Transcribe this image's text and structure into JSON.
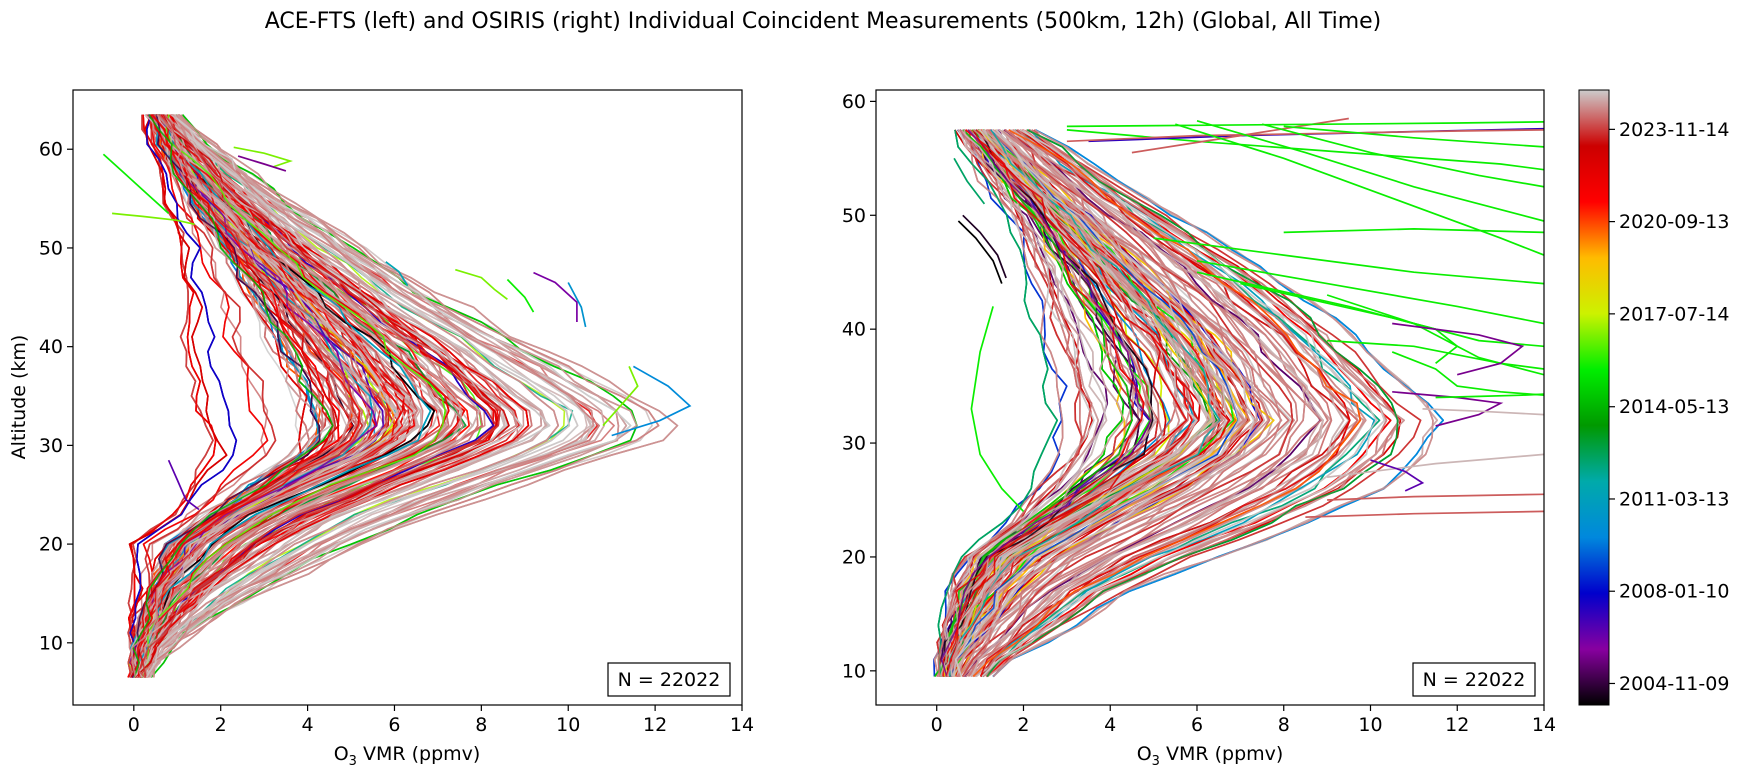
{
  "suptitle": "ACE-FTS (left) and OSIRIS (right) Individual Coincident Measurements (500km, 12h) (Global, All Time)",
  "chart_data": [
    {
      "type": "line",
      "instrument": "ACE-FTS",
      "title": "",
      "xlabel_main": "O",
      "xlabel_sub": "3",
      "xlabel_rest": " VMR (ppmv)",
      "ylabel": "Altitude (km)",
      "xlim": [
        -1.4,
        14
      ],
      "ylim": [
        3.7,
        66
      ],
      "x_ticks": [
        0,
        2,
        4,
        6,
        8,
        10,
        12,
        14
      ],
      "y_ticks": [
        10,
        20,
        30,
        40,
        50,
        60
      ],
      "annotation": "N = 22022",
      "color_encoding": "measurement date (see colorbar)",
      "profile_altitude_range_km": [
        6.5,
        64.5
      ],
      "envelope": [
        {
          "alt": 7,
          "min": 0.0,
          "median": 0.1,
          "max": 0.4
        },
        {
          "alt": 10,
          "min": -0.1,
          "median": 0.2,
          "max": 1.0
        },
        {
          "alt": 15,
          "min": 0.0,
          "median": 0.7,
          "max": 3.0
        },
        {
          "alt": 20,
          "min": -0.1,
          "median": 1.6,
          "max": 5.5
        },
        {
          "alt": 23,
          "min": 0.8,
          "median": 2.6,
          "max": 7.2
        },
        {
          "alt": 26,
          "min": 1.3,
          "median": 4.0,
          "max": 9.2
        },
        {
          "alt": 29,
          "min": 1.6,
          "median": 5.6,
          "max": 11.3
        },
        {
          "alt": 31,
          "min": 1.5,
          "median": 6.4,
          "max": 12.6
        },
        {
          "alt": 33,
          "min": 1.3,
          "median": 6.6,
          "max": 12.6
        },
        {
          "alt": 36,
          "min": 1.1,
          "median": 6.2,
          "max": 11.3
        },
        {
          "alt": 40,
          "min": 1.0,
          "median": 5.4,
          "max": 9.5
        },
        {
          "alt": 45,
          "min": 1.1,
          "median": 4.2,
          "max": 7.2
        },
        {
          "alt": 50,
          "min": 1.0,
          "median": 3.0,
          "max": 5.4
        },
        {
          "alt": 55,
          "min": 0.7,
          "median": 1.9,
          "max": 3.6
        },
        {
          "alt": 60,
          "min": 0.4,
          "median": 1.0,
          "max": 2.0
        },
        {
          "alt": 64,
          "min": 0.2,
          "median": 0.5,
          "max": 1.0
        }
      ],
      "outliers": [
        {
          "x": [
            -0.7,
            -0.2,
            0.3,
            0.8
          ],
          "y": [
            59.5,
            57.5,
            55.5,
            53.5
          ],
          "date_frac": 0.55
        },
        {
          "x": [
            -0.5,
            0.2,
            1.0,
            1.4
          ],
          "y": [
            53.5,
            53.2,
            52.8,
            52.4
          ],
          "date_frac": 0.6
        },
        {
          "x": [
            2.3,
            3.0,
            3.6,
            3.2
          ],
          "y": [
            60.2,
            59.6,
            58.8,
            58.2
          ],
          "date_frac": 0.6
        },
        {
          "x": [
            2.4,
            3.0,
            3.5
          ],
          "y": [
            59.3,
            58.5,
            57.8
          ],
          "date_frac": 0.08
        },
        {
          "x": [
            9.2,
            9.7,
            10.2,
            10.2
          ],
          "y": [
            47.5,
            46.5,
            44.5,
            42.5
          ],
          "date_frac": 0.1
        },
        {
          "x": [
            7.4,
            8.0,
            8.3,
            8.6
          ],
          "y": [
            47.8,
            47.0,
            45.8,
            44.8
          ],
          "date_frac": 0.6
        },
        {
          "x": [
            8.6,
            9.0,
            9.2
          ],
          "y": [
            46.8,
            45.0,
            43.5
          ],
          "date_frac": 0.55
        },
        {
          "x": [
            5.8,
            6.1,
            6.3
          ],
          "y": [
            48.6,
            47.6,
            46.2
          ],
          "date_frac": 0.35
        },
        {
          "x": [
            10.0,
            10.3,
            10.4
          ],
          "y": [
            46.5,
            44.0,
            42.0
          ],
          "date_frac": 0.3
        },
        {
          "x": [
            11.4,
            11.6,
            11.2,
            10.8
          ],
          "y": [
            38.0,
            36.0,
            34.0,
            32.0
          ],
          "date_frac": 0.6
        },
        {
          "x": [
            11.5,
            12.3,
            12.8,
            12.1,
            11.0
          ],
          "y": [
            38.0,
            36.0,
            34.0,
            32.5,
            31.0
          ],
          "date_frac": 0.28
        },
        {
          "x": [
            0.8,
            1.0,
            1.2,
            1.5
          ],
          "y": [
            28.5,
            26.5,
            24.5,
            23.5
          ],
          "date_frac": 0.12
        }
      ]
    },
    {
      "type": "line",
      "instrument": "OSIRIS",
      "title": "",
      "xlabel_main": "O",
      "xlabel_sub": "3",
      "xlabel_rest": " VMR (ppmv)",
      "ylabel": "",
      "xlim": [
        -1.4,
        14
      ],
      "ylim": [
        7,
        61
      ],
      "x_ticks": [
        0,
        2,
        4,
        6,
        8,
        10,
        12,
        14
      ],
      "y_ticks": [
        10,
        20,
        30,
        40,
        50,
        60
      ],
      "annotation": "N = 22022",
      "color_encoding": "measurement date (see colorbar)",
      "profile_altitude_range_km": [
        9.5,
        58.5
      ],
      "envelope": [
        {
          "alt": 10,
          "min": 0.0,
          "median": 0.2,
          "max": 1.4
        },
        {
          "alt": 13,
          "min": 0.0,
          "median": 0.5,
          "max": 2.8
        },
        {
          "alt": 17,
          "min": 0.0,
          "median": 1.0,
          "max": 4.6
        },
        {
          "alt": 20,
          "min": 0.3,
          "median": 1.6,
          "max": 6.6
        },
        {
          "alt": 23,
          "min": 1.3,
          "median": 2.8,
          "max": 8.8
        },
        {
          "alt": 26,
          "min": 1.7,
          "median": 4.2,
          "max": 10.5
        },
        {
          "alt": 29,
          "min": 1.8,
          "median": 5.6,
          "max": 11.4
        },
        {
          "alt": 32,
          "min": 1.8,
          "median": 6.3,
          "max": 11.8
        },
        {
          "alt": 35,
          "min": 1.7,
          "median": 6.0,
          "max": 11.0
        },
        {
          "alt": 40,
          "min": 1.6,
          "median": 5.2,
          "max": 9.6
        },
        {
          "alt": 45,
          "min": 1.6,
          "median": 4.0,
          "max": 7.8
        },
        {
          "alt": 50,
          "min": 1.3,
          "median": 2.8,
          "max": 5.6
        },
        {
          "alt": 55,
          "min": 0.6,
          "median": 1.6,
          "max": 3.4
        },
        {
          "alt": 58,
          "min": 0.2,
          "median": 0.9,
          "max": 2.2
        }
      ],
      "outliers": [
        {
          "x": [
            3.0,
            6.0,
            9.5,
            13.0,
            14.0
          ],
          "y": [
            57.5,
            56.5,
            55.5,
            54.5,
            54.0
          ],
          "date_frac": 0.55
        },
        {
          "x": [
            3.5,
            7.0,
            10.5,
            14.0
          ],
          "y": [
            56.5,
            57.0,
            57.3,
            57.6
          ],
          "date_frac": 0.15
        },
        {
          "x": [
            4.5,
            7.0,
            9.5
          ],
          "y": [
            55.5,
            57.0,
            58.5
          ],
          "date_frac": 0.95
        },
        {
          "x": [
            3.0,
            6.0,
            9.0,
            12.0,
            14.0
          ],
          "y": [
            56.5,
            57.0,
            57.2,
            57.4,
            57.5
          ],
          "date_frac": 0.95
        },
        {
          "x": [
            3.0,
            6.0,
            9.0,
            12.0,
            14.0
          ],
          "y": [
            57.8,
            57.9,
            58.0,
            58.1,
            58.2
          ],
          "date_frac": 0.55
        },
        {
          "x": [
            5.5,
            8.0,
            10.5,
            13.0,
            14.0
          ],
          "y": [
            58.0,
            55.0,
            51.5,
            48.0,
            46.5
          ],
          "date_frac": 0.55
        },
        {
          "x": [
            6.0,
            8.5,
            11.0,
            14.0
          ],
          "y": [
            58.3,
            55.5,
            52.5,
            49.5
          ],
          "date_frac": 0.55
        },
        {
          "x": [
            7.5,
            10.0,
            12.5,
            14.0
          ],
          "y": [
            58.0,
            55.5,
            53.5,
            52.5
          ],
          "date_frac": 0.55
        },
        {
          "x": [
            8.0,
            11.0,
            14.0
          ],
          "y": [
            57.8,
            56.8,
            56.0
          ],
          "date_frac": 0.55
        },
        {
          "x": [
            5.0,
            8.0,
            11.0,
            14.0
          ],
          "y": [
            48.0,
            46.5,
            45.0,
            44.0
          ],
          "date_frac": 0.55
        },
        {
          "x": [
            8.0,
            11.0,
            14.0
          ],
          "y": [
            48.5,
            48.8,
            48.5
          ],
          "date_frac": 0.55
        },
        {
          "x": [
            6.0,
            9.0,
            12.0,
            14.0
          ],
          "y": [
            46.0,
            44.0,
            42.0,
            40.5
          ],
          "date_frac": 0.55
        },
        {
          "x": [
            7.0,
            10.5,
            12.5,
            14.0
          ],
          "y": [
            44.0,
            41.0,
            39.0,
            38.5
          ],
          "date_frac": 0.55
        },
        {
          "x": [
            6.0,
            9.5,
            11.5,
            12.0,
            11.5
          ],
          "y": [
            45.0,
            42.0,
            40.0,
            38.5,
            37.0
          ],
          "date_frac": 0.55
        },
        {
          "x": [
            9.0,
            11.0,
            12.5,
            14.0
          ],
          "y": [
            43.0,
            40.5,
            37.5,
            36.0
          ],
          "date_frac": 0.55
        },
        {
          "x": [
            10.5,
            11.5,
            12.0,
            13.0,
            14.0
          ],
          "y": [
            38.0,
            36.5,
            35.0,
            34.5,
            34.2
          ],
          "date_frac": 0.55
        },
        {
          "x": [
            9.0,
            11.0,
            13.0,
            14.0
          ],
          "y": [
            39.0,
            38.5,
            37.0,
            36.5
          ],
          "date_frac": 0.55
        },
        {
          "x": [
            10.5,
            12.5,
            13.5,
            13.0,
            12.0
          ],
          "y": [
            40.5,
            39.5,
            38.5,
            37.0,
            36.0
          ],
          "date_frac": 0.08
        },
        {
          "x": [
            10.5,
            12.0,
            13.0,
            12.5,
            11.5
          ],
          "y": [
            34.5,
            34.0,
            33.5,
            32.5,
            31.5
          ],
          "date_frac": 0.08
        },
        {
          "x": [
            11.5,
            12.5,
            13.5,
            14.0
          ],
          "y": [
            34.0,
            34.1,
            34.2,
            34.3
          ],
          "date_frac": 0.55
        },
        {
          "x": [
            11.2,
            12.5,
            14.0
          ],
          "y": [
            33.0,
            32.8,
            32.5
          ],
          "date_frac": 0.99
        },
        {
          "x": [
            9.0,
            11.0,
            14.0
          ],
          "y": [
            25.0,
            25.3,
            25.5
          ],
          "date_frac": 0.95
        },
        {
          "x": [
            8.5,
            11.0,
            14.0
          ],
          "y": [
            23.5,
            23.8,
            24.0
          ],
          "date_frac": 0.95
        },
        {
          "x": [
            9.0,
            11.5,
            14.0
          ],
          "y": [
            27.0,
            28.2,
            29.0
          ],
          "date_frac": 0.99
        },
        {
          "x": [
            10.0,
            10.8,
            11.2,
            10.8
          ],
          "y": [
            28.5,
            27.5,
            26.5,
            25.8
          ],
          "date_frac": 0.12
        },
        {
          "x": [
            1.3,
            1.0,
            0.8,
            1.0,
            1.5,
            2.0
          ],
          "y": [
            42.0,
            38.0,
            33.0,
            29.0,
            26.0,
            24.0
          ],
          "date_frac": 0.55
        },
        {
          "x": [
            0.5,
            0.9,
            1.3,
            1.5
          ],
          "y": [
            49.5,
            48.0,
            46.0,
            44.0
          ],
          "date_frac": 0.0
        },
        {
          "x": [
            0.6,
            1.0,
            1.4,
            1.6
          ],
          "y": [
            50.0,
            48.5,
            46.5,
            44.5
          ],
          "date_frac": 0.02
        },
        {
          "x": [
            0.4,
            0.7,
            1.1
          ],
          "y": [
            55.0,
            53.0,
            51.0
          ],
          "date_frac": 0.4
        }
      ]
    }
  ],
  "colorbar": {
    "colormap": "nipy_spectral",
    "label": "",
    "ticks": [
      {
        "label": "2004-11-09",
        "frac": 0.035
      },
      {
        "label": "2008-01-10",
        "frac": 0.185
      },
      {
        "label": "2011-03-13",
        "frac": 0.335
      },
      {
        "label": "2014-05-13",
        "frac": 0.485
      },
      {
        "label": "2017-07-14",
        "frac": 0.636
      },
      {
        "label": "2020-09-13",
        "frac": 0.786
      },
      {
        "label": "2023-11-14",
        "frac": 0.936
      }
    ],
    "stops": [
      "#000000",
      "#8800a0",
      "#0000cc",
      "#0088dd",
      "#00aaaa",
      "#009900",
      "#00ee00",
      "#ccf200",
      "#ffbb00",
      "#ff0000",
      "#cc0000",
      "#cccccc"
    ]
  }
}
